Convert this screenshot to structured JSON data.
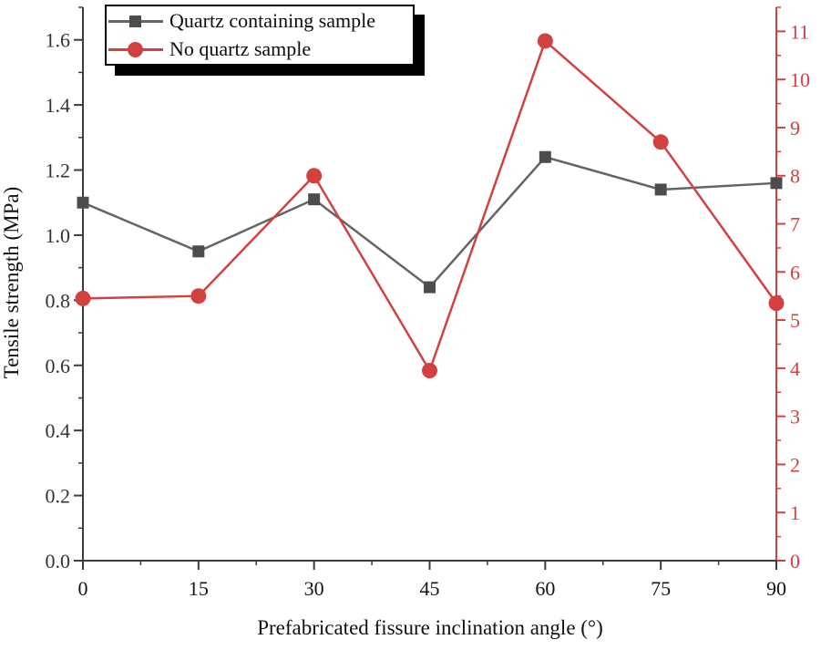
{
  "chart_data": {
    "type": "line",
    "title": "",
    "xlabel": "Prefabricated fissure inclination angle (°)",
    "ylabel_left": "Tensile strength (MPa)",
    "ylabel_right": "",
    "x": [
      0,
      15,
      30,
      45,
      60,
      75,
      90
    ],
    "series": [
      {
        "name": "Quartz containing sample",
        "axis": "left",
        "values": [
          1.1,
          0.95,
          1.11,
          0.84,
          1.24,
          1.14,
          1.16
        ],
        "color": "#646464",
        "marker": "square",
        "marker_color": "#4c4c4c"
      },
      {
        "name": "No quartz sample",
        "axis": "right",
        "values": [
          5.45,
          5.5,
          8.0,
          3.95,
          10.8,
          8.7,
          5.35
        ],
        "color": "#d2413f",
        "marker": "circle",
        "marker_color": "#d2413f"
      }
    ],
    "x_tick_labels": [
      "0",
      "15",
      "30",
      "45",
      "60",
      "75",
      "90"
    ],
    "left_tick_labels": [
      "0.0",
      "0.2",
      "0.4",
      "0.6",
      "0.8",
      "1.0",
      "1.2",
      "1.4",
      "1.6"
    ],
    "right_tick_labels": [
      "0",
      "1",
      "2",
      "3",
      "4",
      "5",
      "6",
      "7",
      "8",
      "9",
      "10",
      "11"
    ],
    "xlim": [
      0,
      90
    ],
    "ylim_left": [
      0,
      1.7
    ],
    "ylim_right": [
      0,
      11.5
    ],
    "grid": false,
    "legend_position": "top-left"
  },
  "colors": {
    "axis": "#3c3c3c",
    "right_axis": "#d2413f",
    "left_tick_label": "#333333",
    "x_tick_label": "#141414",
    "right_tick_label": "#d2413f",
    "background": "#ffffff"
  }
}
